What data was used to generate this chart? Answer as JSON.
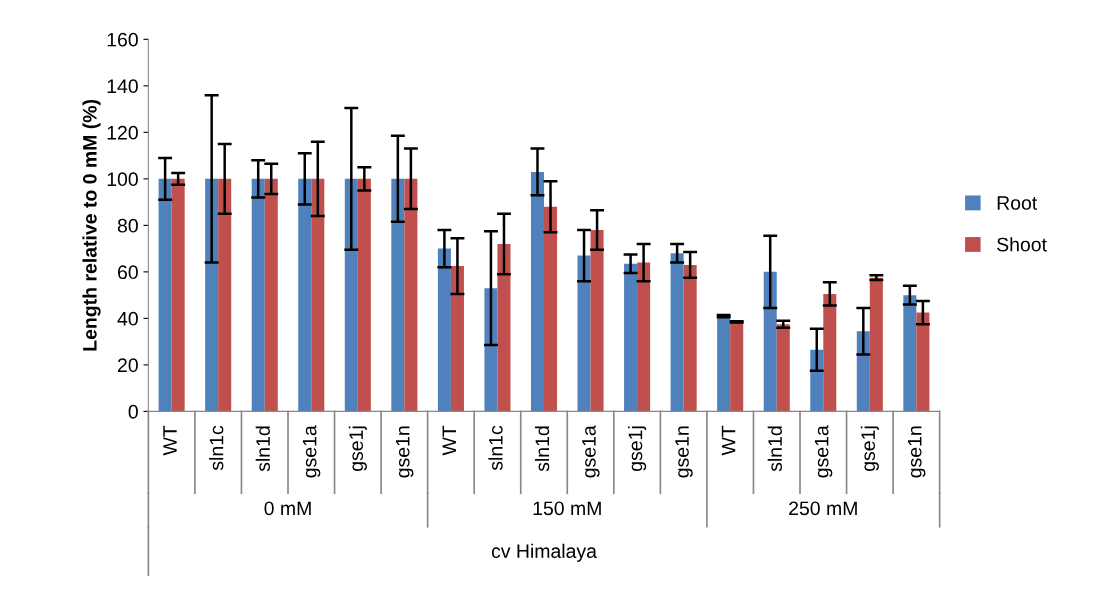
{
  "chart_data": {
    "type": "bar",
    "ylabel": "Length relative to 0 mM (%)",
    "xlabel": "cv Himalaya",
    "categories": [
      "WT",
      "sln1c",
      "sln1d",
      "gse1a",
      "gse1j",
      "gse1n",
      "WT",
      "sln1c",
      "sln1d",
      "gse1a",
      "gse1j",
      "gse1n",
      "WT",
      "sln1d",
      "gse1a",
      "gse1j",
      "gse1n"
    ],
    "annotations": [
      "0 mM",
      "150 mM",
      "250 mM"
    ],
    "series": [
      {
        "name": "Root",
        "color": "#4f81bd",
        "values": [
          100,
          100,
          100,
          100,
          100,
          100,
          70,
          53,
          103,
          67,
          63.5,
          68,
          41,
          60,
          26.5,
          34.5,
          50
        ],
        "errors": [
          9,
          36,
          8,
          11,
          30.5,
          18.5,
          8,
          24.5,
          10,
          11,
          4,
          4,
          0.5,
          15.5,
          9,
          10,
          4
        ]
      },
      {
        "name": "Shoot",
        "color": "#c0504d",
        "values": [
          100,
          100,
          100,
          100,
          100,
          100,
          62.5,
          72,
          88,
          78,
          64,
          63,
          38.5,
          37.5,
          50.5,
          57.5,
          42.5
        ],
        "errors": [
          2.5,
          15,
          6.5,
          16,
          5,
          13,
          12,
          13,
          11,
          8.5,
          8,
          5.5,
          0.3,
          1.5,
          5,
          1,
          5
        ]
      }
    ],
    "ylim": [
      0,
      160
    ],
    "yticks": [
      0,
      20,
      40,
      60,
      80,
      100,
      120,
      140,
      160
    ],
    "legend": "right"
  }
}
